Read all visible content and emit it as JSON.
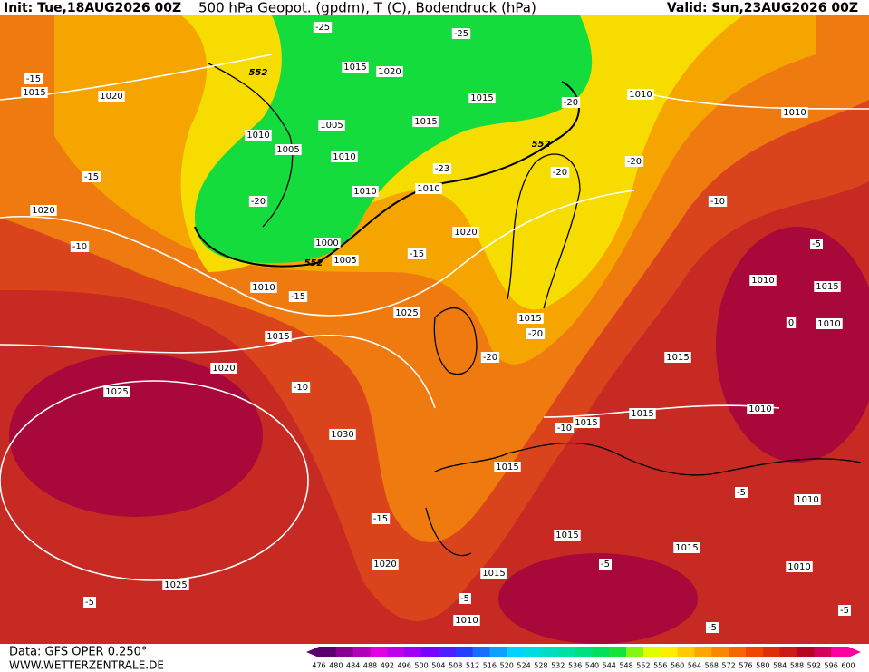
{
  "header": {
    "init": "Init: Tue,18AUG2026 00Z",
    "title": "500 hPa Geopot. (gpdm), T (C), Bodendruck (hPa)",
    "valid": "Valid: Sun,23AUG2026 00Z"
  },
  "footer": {
    "data": "Data: GFS OPER 0.250°",
    "site": "WWW.WETTERZENTRALE.DE"
  },
  "colorbar": {
    "ticks": [
      476,
      480,
      484,
      488,
      492,
      496,
      500,
      504,
      508,
      512,
      516,
      520,
      524,
      528,
      532,
      536,
      540,
      544,
      548,
      552,
      556,
      560,
      564,
      568,
      572,
      576,
      580,
      584,
      588,
      592,
      596,
      600
    ]
  },
  "isobar_labels": [
    "1015",
    "1020",
    "1015",
    "1020",
    "1015",
    "1010",
    "1010",
    "1010",
    "1005",
    "1005",
    "1010",
    "1015",
    "1010",
    "1010",
    "1020",
    "1020",
    "1000",
    "1005",
    "1010",
    "1025",
    "1015",
    "1015",
    "1020",
    "1015",
    "1025",
    "1010",
    "1015",
    "1015",
    "1030",
    "1010",
    "1015",
    "1010",
    "1015",
    "1010",
    "1015",
    "1015",
    "1020",
    "1010",
    "1015",
    "1025",
    "1010"
  ],
  "temperature_labels": [
    "-15",
    "-15",
    "-10",
    "-20",
    "-25",
    "-25",
    "-20",
    "-23",
    "-20",
    "-20",
    "-10",
    "-5",
    "-15",
    "-15",
    "-20",
    "-20",
    "-10",
    "-10",
    "0",
    "-5",
    "-15",
    "-5",
    "-5",
    "-5",
    "-5",
    "-5"
  ],
  "geopotential_labels": [
    "552",
    "552",
    "552"
  ]
}
